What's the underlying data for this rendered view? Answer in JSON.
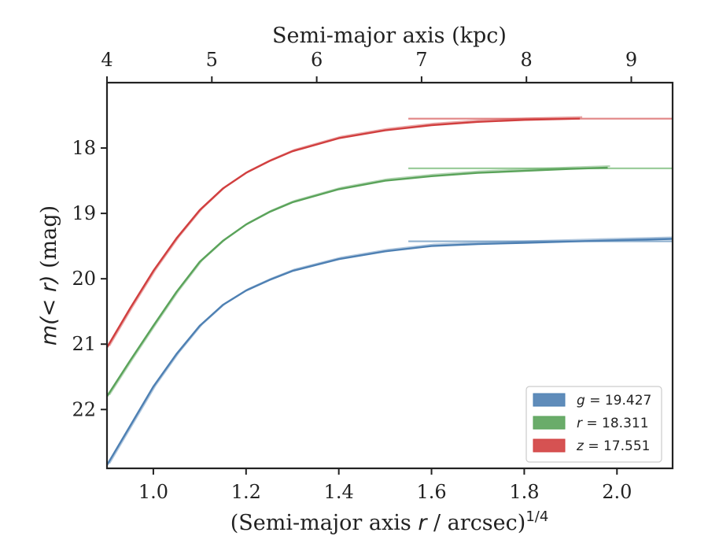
{
  "chart_data": {
    "type": "line",
    "title": "",
    "xlabel_main": "(Semi-major axis ",
    "xlabel_var": "r",
    "xlabel_rest": " / arcsec)",
    "xlabel_exp": "1/4",
    "xlabel_top": "Semi-major axis (kpc)",
    "ylabel_pre": "m",
    "ylabel_math": "(< r)",
    "ylabel_post": " (mag)",
    "xlim": [
      0.9,
      2.12
    ],
    "ylim_inverted": [
      22.9,
      17.0
    ],
    "x_ticks": [
      "1.0",
      "1.2",
      "1.4",
      "1.6",
      "1.8",
      "2.0"
    ],
    "x_tick_values": [
      1.0,
      1.2,
      1.4,
      1.6,
      1.8,
      2.0
    ],
    "y_ticks": [
      "18",
      "19",
      "20",
      "21",
      "22"
    ],
    "y_tick_values": [
      18,
      19,
      20,
      21,
      22
    ],
    "top_ticks": [
      "4",
      "5",
      "6",
      "7",
      "8",
      "9"
    ],
    "top_tick_values": [
      4,
      5,
      6,
      7,
      8,
      9
    ],
    "top_axis_scale": "x_top = x^4 * 4 / 0.9^4 (kpc, monotonic with lower axis)",
    "legend_position": "lower-right",
    "grid": false,
    "series": [
      {
        "name": "g = 19.427",
        "band": "g",
        "value": "19.427",
        "color": "#4e80b3",
        "x": [
          0.9,
          0.95,
          1.0,
          1.05,
          1.1,
          1.15,
          1.2,
          1.25,
          1.3,
          1.4,
          1.5,
          1.6,
          1.7,
          1.8,
          1.9,
          2.0,
          2.12
        ],
        "y": [
          22.85,
          22.25,
          21.65,
          21.15,
          20.72,
          20.4,
          20.18,
          20.02,
          19.88,
          19.7,
          19.58,
          19.5,
          19.47,
          19.45,
          19.43,
          19.41,
          19.39
        ]
      },
      {
        "name": "r = 18.311",
        "band": "r",
        "value": "18.311",
        "color": "#5aa35a",
        "x": [
          0.9,
          0.95,
          1.0,
          1.05,
          1.1,
          1.15,
          1.2,
          1.25,
          1.3,
          1.4,
          1.5,
          1.6,
          1.7,
          1.8,
          1.9,
          1.98
        ],
        "y": [
          21.8,
          21.25,
          20.72,
          20.2,
          19.74,
          19.42,
          19.17,
          18.98,
          18.83,
          18.63,
          18.5,
          18.43,
          18.38,
          18.35,
          18.32,
          18.3
        ]
      },
      {
        "name": "z = 17.551",
        "band": "z",
        "value": "17.551",
        "color": "#d13f3f",
        "x": [
          0.9,
          0.95,
          1.0,
          1.05,
          1.1,
          1.15,
          1.2,
          1.25,
          1.3,
          1.4,
          1.5,
          1.6,
          1.7,
          1.8,
          1.92
        ],
        "y": [
          21.05,
          20.45,
          19.88,
          19.38,
          18.95,
          18.62,
          18.38,
          18.2,
          18.05,
          17.85,
          17.73,
          17.65,
          17.6,
          17.57,
          17.55
        ]
      }
    ],
    "asymptotes": [
      {
        "band": "g",
        "y": 19.427,
        "color": "#8fb0cf"
      },
      {
        "band": "r",
        "y": 18.311,
        "color": "#9ccd9c"
      },
      {
        "band": "z",
        "y": 17.551,
        "color": "#e38b8b"
      }
    ]
  }
}
